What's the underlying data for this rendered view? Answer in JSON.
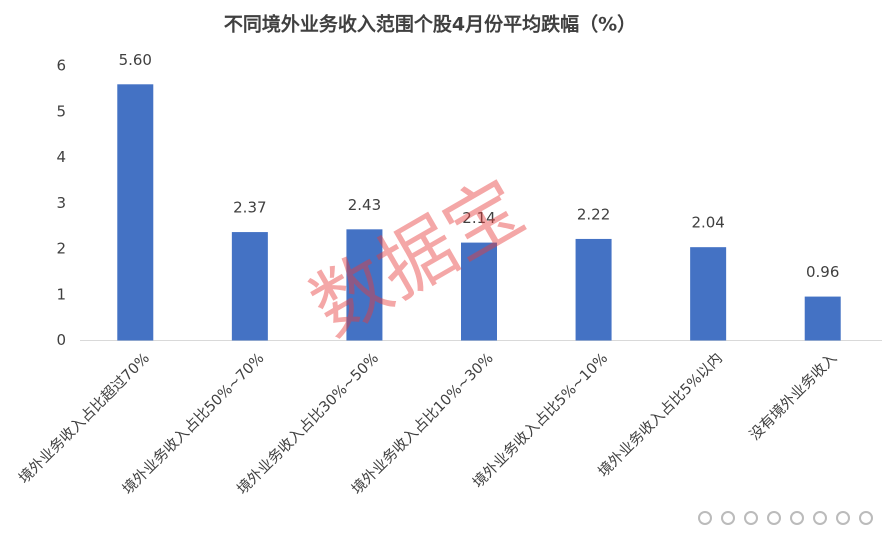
{
  "chart_data": {
    "type": "bar",
    "title": "不同境外业务收入范围个股4月份平均跌幅（%）",
    "categories": [
      "境外业务收入占比超过70%",
      "境外业务收入占比50%~70%",
      "境外业务收入占比30%~50%",
      "境外业务收入占比10%~30%",
      "境外业务收入占比5%~10%",
      "境外业务收入占比5%以内",
      "没有境外业务收入"
    ],
    "values": [
      5.6,
      2.37,
      2.43,
      2.14,
      2.22,
      2.04,
      0.96
    ],
    "value_labels": [
      "5.60",
      "2.37",
      "2.43",
      "2.14",
      "2.22",
      "2.04",
      "0.96"
    ],
    "color": "#4472c4",
    "ylim": [
      0,
      6
    ],
    "yticks": [
      0,
      1,
      2,
      3,
      4,
      5,
      6
    ],
    "grid": false,
    "watermark": "数据宝"
  }
}
